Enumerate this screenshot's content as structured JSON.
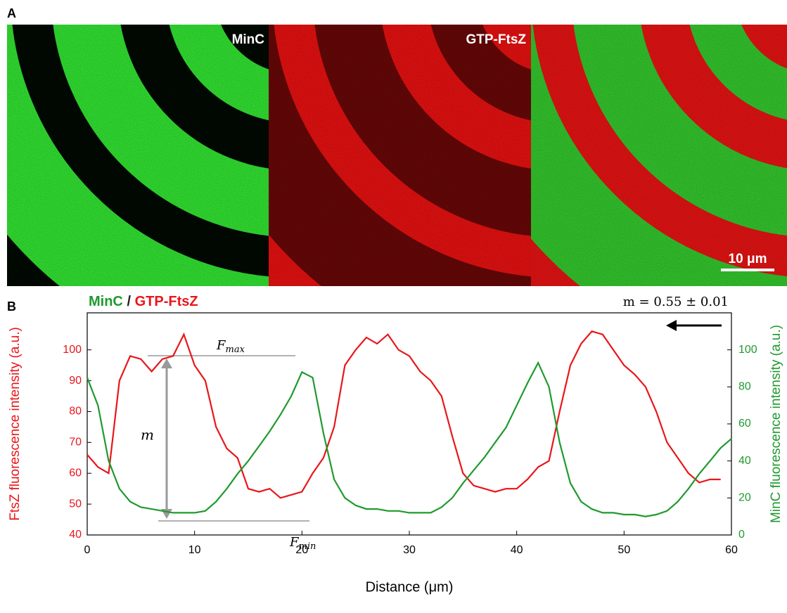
{
  "panel_a": {
    "label": "A",
    "titles": [
      "MinC",
      "GTP-FtsZ"
    ],
    "scale_bar": "10 μm"
  },
  "chart_data": {
    "type": "line",
    "panel_label": "B",
    "legend_separator": "/",
    "annotation": "m = 0.55 ± 0.01",
    "fmax": {
      "symbol": "F",
      "sub": "max"
    },
    "fmin": {
      "symbol": "F",
      "sub": "min"
    },
    "m_label": "m",
    "xlabel": "Distance (μm)",
    "ylabel": "FtsZ fluorescence intensity (a.u.)",
    "y2label": "MinC fluorescence intensity (a.u.)",
    "xlim": [
      0,
      60
    ],
    "xticks": [
      0,
      10,
      20,
      30,
      40,
      50,
      60
    ],
    "ylim": [
      40,
      112
    ],
    "yticks": [
      40,
      50,
      60,
      70,
      80,
      90,
      100
    ],
    "y2lim": [
      0,
      120
    ],
    "y2ticks": [
      0,
      20,
      40,
      60,
      80,
      100
    ],
    "series": [
      {
        "name": "GTP-FtsZ",
        "color": "#e8161b",
        "axis": "y",
        "x": [
          0,
          1,
          2,
          3,
          4,
          5,
          6,
          7,
          8,
          9,
          10,
          11,
          12,
          13,
          14,
          15,
          16,
          17,
          18,
          19,
          20,
          21,
          22,
          23,
          24,
          25,
          26,
          27,
          28,
          29,
          30,
          31,
          32,
          33,
          34,
          35,
          36,
          37,
          38,
          39,
          40,
          41,
          42,
          43,
          44,
          45,
          46,
          47,
          48,
          49,
          50,
          51,
          52,
          53,
          54,
          55,
          56,
          57,
          58,
          59
        ],
        "values": [
          66,
          62,
          60,
          90,
          98,
          97,
          93,
          97,
          98,
          105,
          95,
          90,
          75,
          68,
          65,
          55,
          54,
          55,
          52,
          53,
          54,
          60,
          65,
          75,
          95,
          100,
          104,
          102,
          105,
          100,
          98,
          93,
          90,
          85,
          72,
          60,
          56,
          55,
          54,
          55,
          55,
          58,
          62,
          64,
          80,
          95,
          102,
          106,
          105,
          100,
          95,
          92,
          88,
          80,
          70,
          65,
          60,
          57,
          58,
          58
        ]
      },
      {
        "name": "MinC",
        "color": "#1f9a2e",
        "axis": "y2",
        "x": [
          0,
          1,
          2,
          3,
          4,
          5,
          6,
          7,
          8,
          9,
          10,
          11,
          12,
          13,
          14,
          15,
          16,
          17,
          18,
          19,
          20,
          21,
          22,
          23,
          24,
          25,
          26,
          27,
          28,
          29,
          30,
          31,
          32,
          33,
          34,
          35,
          36,
          37,
          38,
          39,
          40,
          41,
          42,
          43,
          44,
          45,
          46,
          47,
          48,
          49,
          50,
          51,
          52,
          53,
          54,
          55,
          56,
          57,
          58,
          59,
          60
        ],
        "values": [
          85,
          70,
          40,
          25,
          18,
          15,
          14,
          13,
          12,
          12,
          12,
          13,
          18,
          25,
          33,
          40,
          48,
          56,
          65,
          75,
          88,
          85,
          55,
          30,
          20,
          16,
          14,
          14,
          13,
          13,
          12,
          12,
          12,
          15,
          20,
          28,
          35,
          42,
          50,
          58,
          70,
          82,
          93,
          80,
          50,
          28,
          18,
          14,
          12,
          12,
          11,
          11,
          10,
          11,
          13,
          18,
          25,
          33,
          40,
          47,
          52
        ]
      }
    ]
  }
}
